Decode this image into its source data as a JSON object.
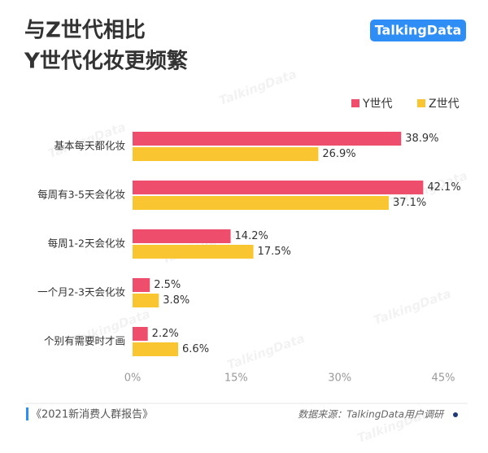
{
  "chart_data": {
    "type": "bar",
    "orientation": "horizontal",
    "title": [
      "与Z世代相比",
      "Y世代化妆更频繁"
    ],
    "logo": "TalkingData",
    "watermark": "TalkingData",
    "categories": [
      "基本每天都化妆",
      "每周有3-5天会化妆",
      "每周1-2天会化妆",
      "一个月2-3天会化妆",
      "个别有需要时才画"
    ],
    "series": [
      {
        "name": "Y世代",
        "color": "#ee4d6b",
        "values": [
          38.9,
          42.1,
          14.2,
          2.5,
          2.2
        ],
        "value_labels": [
          "38.9%",
          "42.1%",
          "14.2%",
          "2.5%",
          "2.2%"
        ]
      },
      {
        "name": "Z世代",
        "color": "#f9c631",
        "values": [
          26.9,
          37.1,
          17.5,
          3.8,
          6.6
        ],
        "value_labels": [
          "26.9%",
          "37.1%",
          "17.5%",
          "3.8%",
          "6.6%"
        ]
      }
    ],
    "xlim": [
      0,
      45
    ],
    "xticks": [
      {
        "value": 0,
        "label": "0%"
      },
      {
        "value": 15,
        "label": "15%"
      },
      {
        "value": 30,
        "label": "30%"
      },
      {
        "value": 45,
        "label": "45%"
      }
    ],
    "grid": false,
    "legend": "top-right",
    "report": "《2021新消费人群报告》",
    "source": "数据来源：TalkingData用户调研"
  }
}
